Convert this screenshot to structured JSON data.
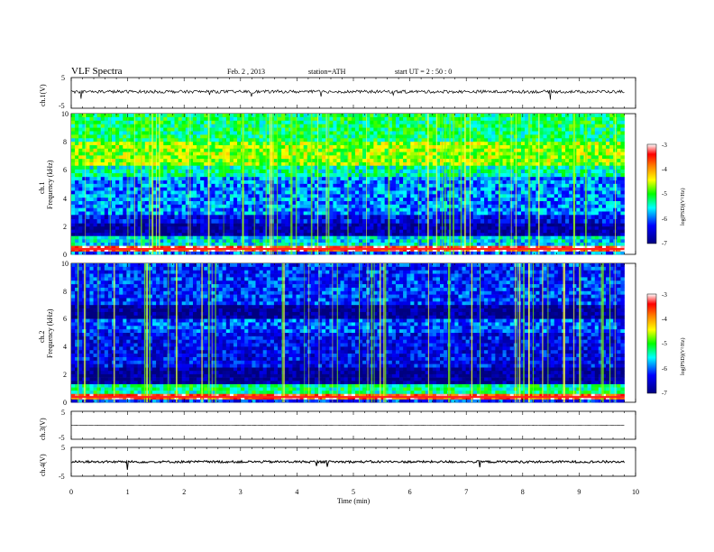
{
  "header": {
    "title": "VLF  Spectra",
    "date": "Feb. 2  , 2013",
    "station": "station=ATH",
    "start": "start  UT  =   2  : 50 : 0"
  },
  "chart_data": [
    {
      "type": "line",
      "panel": "ch1",
      "ylabel": "ch.1(V)",
      "yticks": [
        "5",
        "-5"
      ],
      "ylim": [
        -5,
        5
      ],
      "xlim": [
        0,
        10
      ],
      "series": [
        {
          "values_level": 0.4,
          "noise_amplitude": 0.5,
          "color": "#000000"
        }
      ],
      "x_end": 9.8
    },
    {
      "type": "heatmap",
      "panel": "ch1-spectrogram",
      "ylabel_top": "ch.1",
      "ylabel": "Frequency  (kHz)",
      "yticks": [
        "0",
        "2",
        "4",
        "6",
        "8",
        "10"
      ],
      "ylim": [
        0,
        10
      ],
      "xlim": [
        0,
        10
      ],
      "x_end": 9.8,
      "colorbar": {
        "label": "log(PSD)(V²/Hz)",
        "ticks": [
          "-3",
          "-4",
          "-5",
          "-6",
          "-7"
        ],
        "range": [
          -7,
          -3
        ]
      },
      "bands_logpsd": [
        {
          "f": [
            8.0,
            10.0
          ],
          "v": -5.2
        },
        {
          "f": [
            6.3,
            8.0
          ],
          "v": -4.7
        },
        {
          "f": [
            5.5,
            6.3
          ],
          "v": -5.4
        },
        {
          "f": [
            2.8,
            5.5
          ],
          "v": -5.9
        },
        {
          "f": [
            2.2,
            2.8
          ],
          "v": -6.4
        },
        {
          "f": [
            1.3,
            2.2
          ],
          "v": -6.8
        },
        {
          "f": [
            0.6,
            1.3
          ],
          "v": -5.6
        },
        {
          "f": [
            0.2,
            0.6
          ],
          "v": -3.4
        },
        {
          "f": [
            0.0,
            0.2
          ],
          "v": -6.0
        }
      ]
    },
    {
      "type": "heatmap",
      "panel": "ch2-spectrogram",
      "ylabel_top": "ch.2",
      "ylabel": "Frequency  (kHz)",
      "yticks": [
        "0",
        "2",
        "4",
        "6",
        "8",
        "10"
      ],
      "ylim": [
        0,
        10
      ],
      "xlim": [
        0,
        10
      ],
      "x_end": 9.8,
      "colorbar": {
        "label": "log(PSD)(V²/Hz)",
        "ticks": [
          "-3",
          "-4",
          "-5",
          "-6",
          "-7"
        ],
        "range": [
          -7,
          -3
        ]
      },
      "bands_logpsd": [
        {
          "f": [
            7.0,
            10.0
          ],
          "v": -6.2
        },
        {
          "f": [
            6.0,
            7.0
          ],
          "v": -6.9
        },
        {
          "f": [
            5.0,
            6.0
          ],
          "v": -6.1
        },
        {
          "f": [
            2.5,
            5.0
          ],
          "v": -6.4
        },
        {
          "f": [
            1.3,
            2.5
          ],
          "v": -6.9
        },
        {
          "f": [
            0.6,
            1.3
          ],
          "v": -5.3
        },
        {
          "f": [
            0.2,
            0.6
          ],
          "v": -3.5
        },
        {
          "f": [
            0.0,
            0.2
          ],
          "v": -6.2
        }
      ]
    },
    {
      "type": "line",
      "panel": "ch3",
      "ylabel": "ch.3(V)",
      "yticks": [
        "5",
        "-5"
      ],
      "ylim": [
        -5,
        5
      ],
      "xlim": [
        0,
        10
      ],
      "series": [
        {
          "values_level": 0.0,
          "noise_amplitude": 0.05,
          "color": "#000000"
        }
      ],
      "x_end": 9.8
    },
    {
      "type": "line",
      "panel": "ch4",
      "ylabel": "ch.4(V)",
      "yticks": [
        "5",
        "-5"
      ],
      "ylim": [
        -5,
        5
      ],
      "xlim": [
        0,
        10
      ],
      "series": [
        {
          "values_level": 0.0,
          "noise_amplitude": 0.4,
          "color": "#000000"
        }
      ],
      "x_end": 9.8,
      "xlabel": "Time  (min)",
      "xticks": [
        "0",
        "1",
        "2",
        "3",
        "4",
        "5",
        "6",
        "7",
        "8",
        "9",
        "10"
      ]
    }
  ]
}
